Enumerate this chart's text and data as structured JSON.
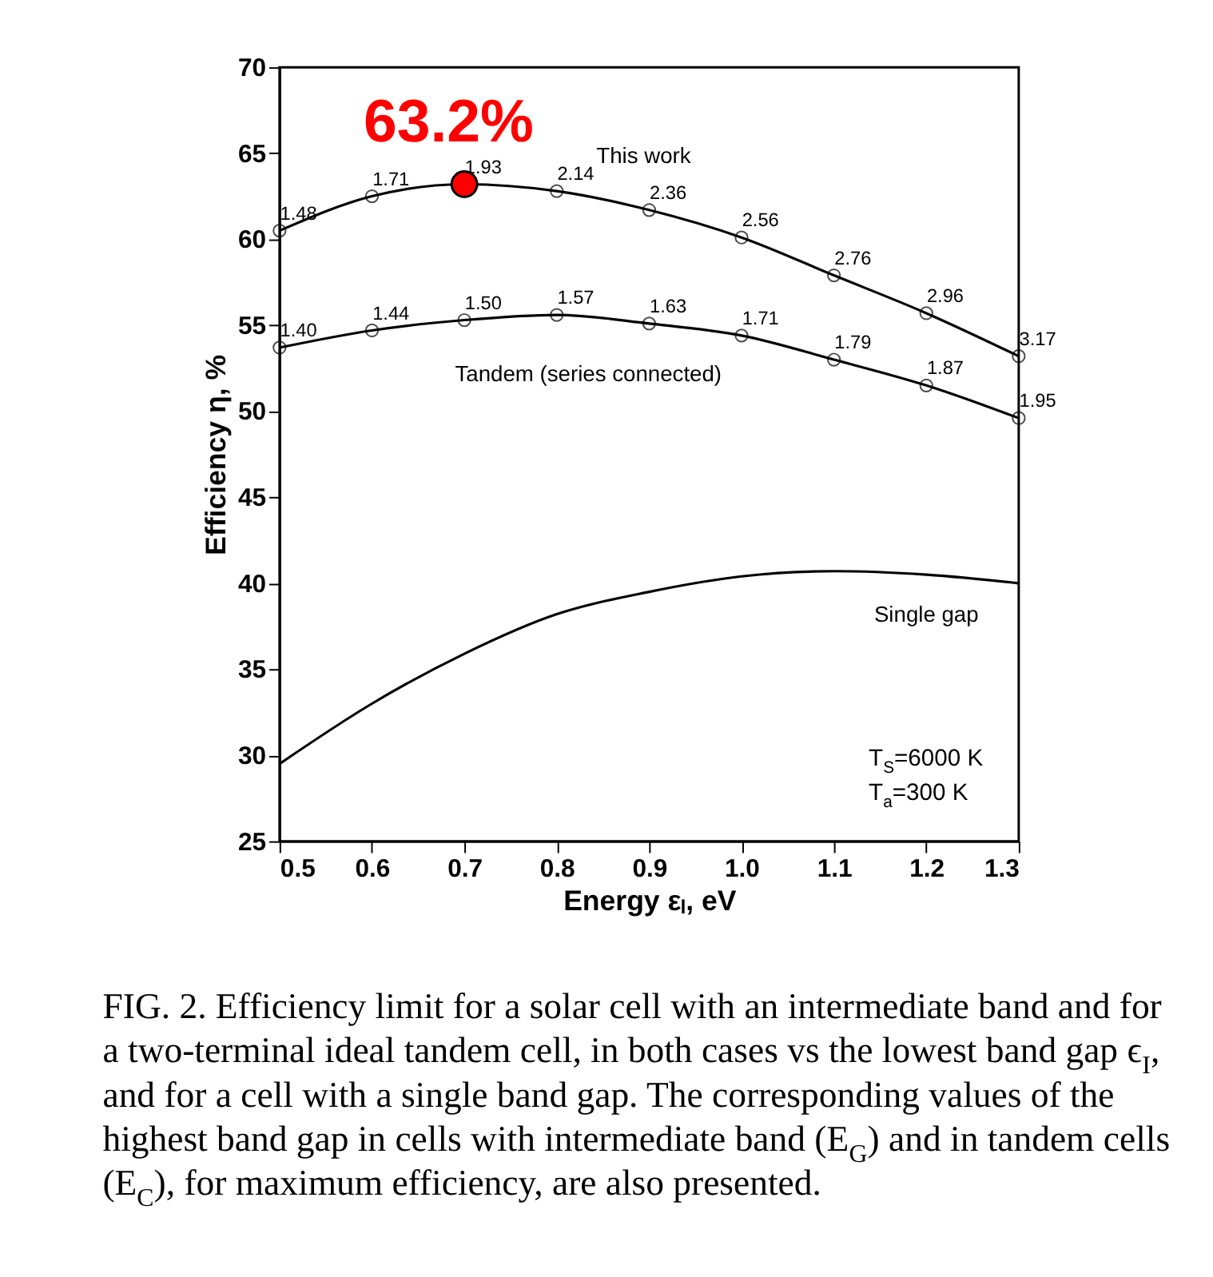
{
  "chart_data": {
    "type": "line",
    "xlabel": "Energy εₗ, eV",
    "ylabel": "Efficiency η, %",
    "x": [
      0.5,
      0.6,
      0.7,
      0.8,
      0.9,
      1.0,
      1.1,
      1.2,
      1.3
    ],
    "series": [
      {
        "name": "This work",
        "color": "#000000",
        "marker": "circle",
        "values": [
          60.5,
          62.5,
          63.2,
          62.8,
          61.7,
          60.1,
          57.9,
          55.7,
          53.2
        ]
      },
      {
        "name": "Tandem (series connected)",
        "color": "#000000",
        "marker": "circle",
        "values": [
          53.7,
          54.7,
          55.3,
          55.6,
          55.1,
          54.4,
          53.0,
          51.5,
          49.6
        ]
      },
      {
        "name": "Single gap",
        "color": "#000000",
        "marker": "none",
        "values": [
          29.5,
          33.0,
          35.9,
          38.2,
          39.5,
          40.4,
          40.7,
          40.5,
          40.0
        ]
      },
      {
        "type": "scatter",
        "color": "#ff0000",
        "marker": "circle",
        "x": [
          0.7
        ],
        "values": [
          63.2
        ]
      }
    ],
    "xlim": [
      0.5,
      1.3
    ],
    "xticks": [
      0.5,
      0.6,
      0.7,
      0.8,
      0.9,
      {
        "value": 1,
        "label": "1.0"
      },
      1.1,
      1.2,
      1.3
    ],
    "line_style": "solid",
    "ylim": [
      25,
      70
    ],
    "yticks": [
      25,
      30,
      35,
      40,
      45,
      50,
      55,
      60,
      65,
      70
    ],
    "grid": false,
    "annotations": [
      {
        "text": "63.2%",
        "x": 0.7,
        "y": 63.2
      },
      {
        "text": "1.48",
        "x": 0.5,
        "y": 60.5
      },
      {
        "text": "1.71",
        "x": 0.6,
        "y": 62.5
      },
      {
        "text": "1.93",
        "x": 0.7,
        "y": 63.2
      },
      {
        "text": "2.14",
        "x": 0.8,
        "y": 62.8
      },
      {
        "text": "2.36",
        "x": 0.9,
        "y": 61.7
      },
      {
        "text": "2.56",
        "x": 1.0,
        "y": 60.1
      },
      {
        "text": "2.76",
        "x": 1.1,
        "y": 57.9
      },
      {
        "text": "2.96",
        "x": 1.2,
        "y": 55.7
      },
      {
        "text": "3.17",
        "x": 1.3,
        "y": 53.2
      },
      {
        "text": "1.40",
        "x": 0.5,
        "y": 53.7
      },
      {
        "text": "1.44",
        "x": 0.6,
        "y": 54.7
      },
      {
        "text": "1.50",
        "x": 0.7,
        "y": 55.3
      },
      {
        "text": "1.57",
        "x": 0.8,
        "y": 55.6
      },
      {
        "text": "1.63",
        "x": 0.9,
        "y": 55.1
      },
      {
        "text": "1.71",
        "x": 1.0,
        "y": 54.4
      },
      {
        "text": "1.79",
        "x": 1.1,
        "y": 53.0
      },
      {
        "text": "1.87",
        "x": 1.2,
        "y": 51.5
      },
      {
        "text": "1.95",
        "x": 1.3,
        "y": 49.6
      },
      "T$_{S}$=6000 K",
      "T$_{a}$=300 K",
      "FIG. 2.   Efficiency limit for a solar cell with an intermediate band and for a two-terminal ideal tandem cell, in both cases vs the lowest band gap ϵ$_{I}$, and for a cell with a single band gap. The corresponding values of the highest band gap in cells with intermediate band (E$_{G}$) and in tandem cells (E$_{C}$), for maximum efficiency, are also presented."
    ]
  }
}
